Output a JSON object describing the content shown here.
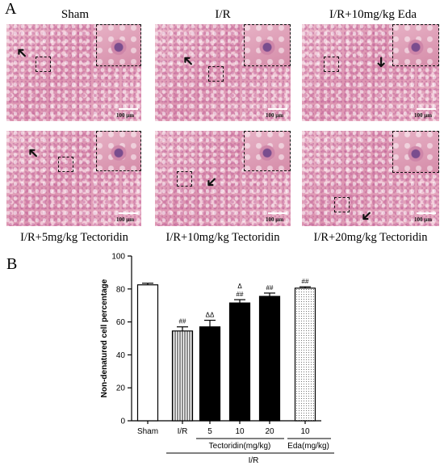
{
  "panel_a": {
    "letter": "A",
    "column_titles": [
      "Sham",
      "I/R",
      "I/R+10mg/kg Eda"
    ],
    "row2_titles": [
      "I/R+5mg/kg Tectoridin",
      "I/R+10mg/kg Tectoridin",
      "I/R+20mg/kg Tectoridin"
    ],
    "scale_label": "100 μm",
    "arrow_icon": "arrow-icon"
  },
  "panel_b": {
    "letter": "B"
  },
  "chart_data": {
    "type": "bar",
    "categories": [
      "Sham",
      "I/R",
      "5",
      "10",
      "20",
      "10"
    ],
    "values": [
      82.5,
      54.5,
      57.0,
      71.5,
      75.5,
      80.5
    ],
    "errors": [
      1.0,
      2.5,
      4.0,
      2.0,
      2.0,
      0.8
    ],
    "significance": [
      "",
      "##",
      "ΔΔ",
      "Δ ##",
      "##",
      "##"
    ],
    "fill_styles": [
      "white",
      "vertical-lines",
      "black",
      "black",
      "black",
      "dotted"
    ],
    "ylabel": "Non-denatured cell percentage",
    "yticks": [
      0,
      20,
      40,
      60,
      80,
      100
    ],
    "ylim": [
      0,
      100
    ],
    "group_labels": [
      "Tectoridin(mg/kg)",
      "Eda(mg/kg)"
    ],
    "condition_label": "I/R",
    "grid": false
  }
}
